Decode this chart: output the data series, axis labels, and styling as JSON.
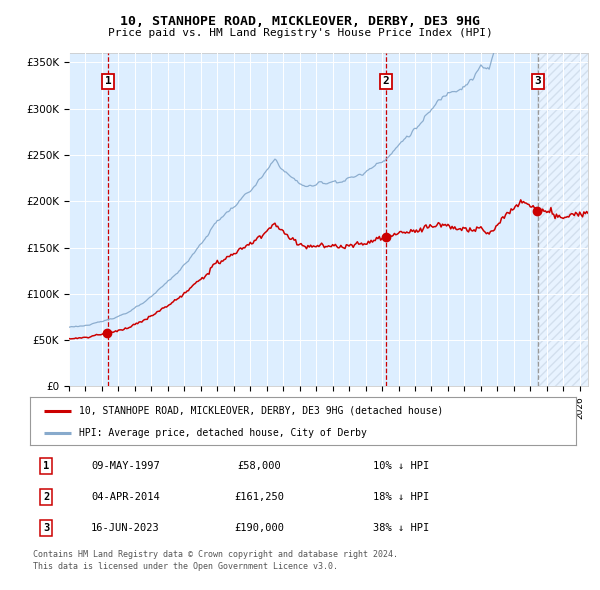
{
  "title": "10, STANHOPE ROAD, MICKLEOVER, DERBY, DE3 9HG",
  "subtitle": "Price paid vs. HM Land Registry's House Price Index (HPI)",
  "sale_label": "10, STANHOPE ROAD, MICKLEOVER, DERBY, DE3 9HG (detached house)",
  "hpi_label": "HPI: Average price, detached house, City of Derby",
  "footer1": "Contains HM Land Registry data © Crown copyright and database right 2024.",
  "footer2": "This data is licensed under the Open Government Licence v3.0.",
  "transactions": [
    {
      "num": 1,
      "date": "09-MAY-1997",
      "price": 58000,
      "pct": "10%",
      "dir": "↓",
      "year": 1997.37
    },
    {
      "num": 2,
      "date": "04-APR-2014",
      "price": 161250,
      "pct": "18%",
      "dir": "↓",
      "year": 2014.25
    },
    {
      "num": 3,
      "date": "16-JUN-2023",
      "price": 190000,
      "pct": "38%",
      "dir": "↓",
      "year": 2023.46
    }
  ],
  "sale_color": "#cc0000",
  "hpi_color": "#88aacc",
  "vline_red_color": "#cc0000",
  "vline_gray_color": "#999999",
  "plot_bg": "#ddeeff",
  "ylim": [
    0,
    360000
  ],
  "xlim_start": 1995.5,
  "xlim_end": 2026.5,
  "yticks": [
    0,
    50000,
    100000,
    150000,
    200000,
    250000,
    300000,
    350000
  ],
  "ytick_labels": [
    "£0",
    "£50K",
    "£100K",
    "£150K",
    "£200K",
    "£250K",
    "£300K",
    "£350K"
  ],
  "xticks": [
    1995,
    1996,
    1997,
    1998,
    1999,
    2000,
    2001,
    2002,
    2003,
    2004,
    2005,
    2006,
    2007,
    2008,
    2009,
    2010,
    2011,
    2012,
    2013,
    2014,
    2015,
    2016,
    2017,
    2018,
    2019,
    2020,
    2021,
    2022,
    2023,
    2024,
    2025,
    2026
  ]
}
